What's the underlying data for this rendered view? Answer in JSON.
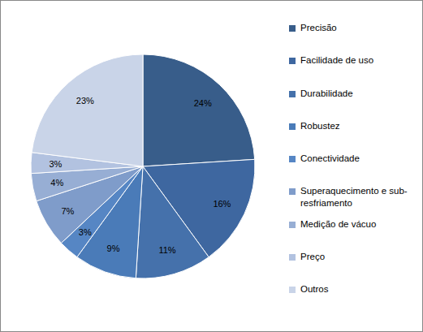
{
  "chart_data": {
    "type": "pie",
    "categories": [
      "Precisão",
      "Facilidade de uso",
      "Durabilidade",
      "Robustez",
      "Conectividade",
      "Superaquecimento e sub-resfriamento",
      "Medição de vácuo",
      "Preço",
      "Outros"
    ],
    "values": [
      24,
      16,
      11,
      9,
      3,
      7,
      4,
      3,
      23
    ],
    "value_labels": [
      "24%",
      "16%",
      "11%",
      "9%",
      "3%",
      "7%",
      "4%",
      "3%",
      "23%"
    ],
    "colors": [
      "#385d8a",
      "#3e67a0",
      "#4571ab",
      "#4a7bb8",
      "#5686c4",
      "#7f9cca",
      "#97aed4",
      "#b2c2e0",
      "#c9d4e8"
    ],
    "data_labels": true,
    "legend": "right"
  }
}
